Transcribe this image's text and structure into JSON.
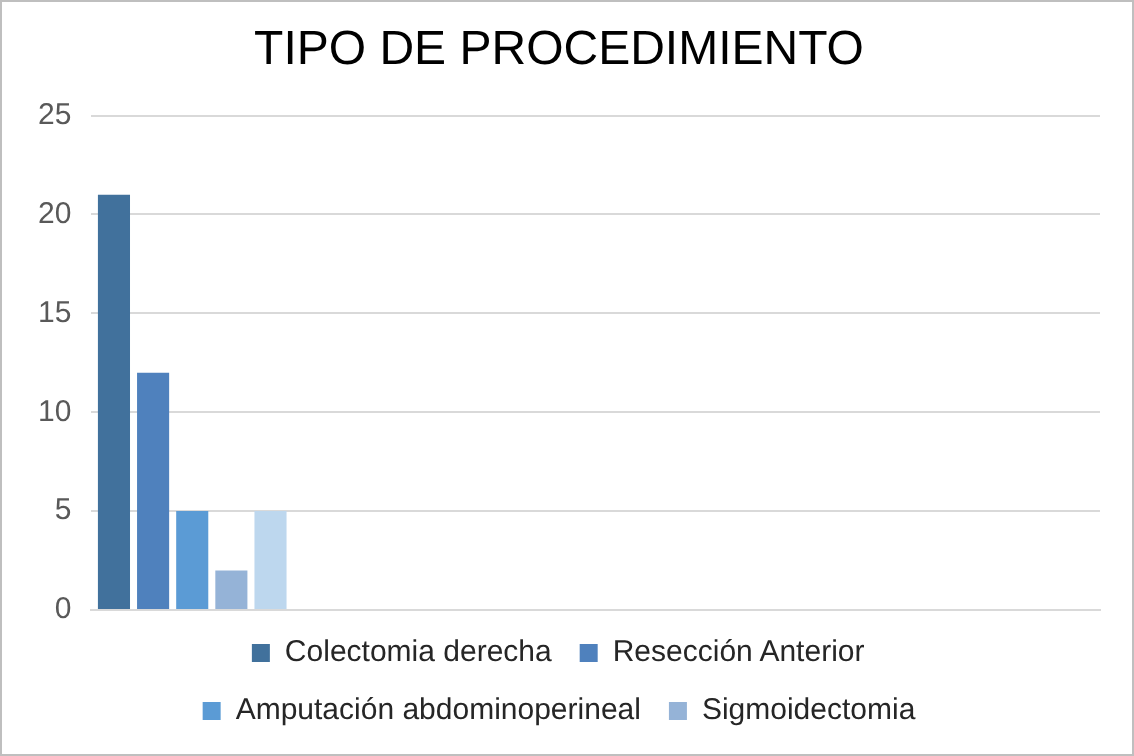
{
  "chart_data": {
    "type": "bar",
    "title": "TIPO DE PROCEDIMIENTO",
    "categories": [
      null,
      null,
      null,
      null,
      null
    ],
    "series": [
      {
        "name": "Colectomia derecha",
        "color": "#41719c",
        "values": [
          21,
          null,
          null,
          null,
          null
        ]
      },
      {
        "name": "Resección Anterior",
        "color": "#4f81bd",
        "values": [
          12,
          null,
          null,
          null,
          null
        ]
      },
      {
        "name": "Amputación abdominoperineal",
        "color": "#5b9bd5",
        "values": [
          5,
          null,
          null,
          null,
          null
        ]
      },
      {
        "name": "Sigmoidectomia",
        "color": "#95b3d7",
        "values": [
          2,
          null,
          null,
          null,
          null
        ]
      },
      {
        "color": "#bdd7ee",
        "values": [
          5,
          null,
          null,
          null,
          null
        ]
      }
    ],
    "ylim": [
      0,
      25
    ],
    "yticks": [
      0,
      5,
      10,
      15,
      20,
      25
    ],
    "grid": "y",
    "legend": "bottom",
    "tick_labels": "y"
  }
}
